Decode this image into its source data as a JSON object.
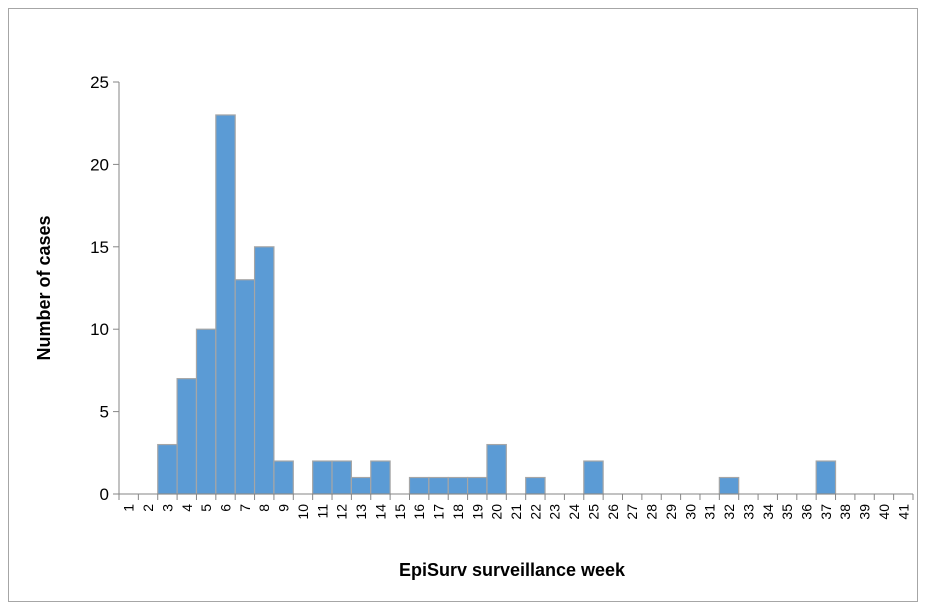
{
  "chart_data": {
    "type": "bar",
    "title": "",
    "xlabel": "EpiSurv surveillance week",
    "ylabel": "Number of cases",
    "ylim": [
      0,
      25
    ],
    "yticks": [
      0,
      5,
      10,
      15,
      20,
      25
    ],
    "grid": false,
    "legend": "none",
    "bar_color": "#5b9bd5",
    "bar_edge_color": "#a6a6a6",
    "categories": [
      "1",
      "2",
      "3",
      "4",
      "5",
      "6",
      "7",
      "8",
      "9",
      "10",
      "11",
      "12",
      "13",
      "14",
      "15",
      "16",
      "17",
      "18",
      "19",
      "20",
      "21",
      "22",
      "23",
      "24",
      "25",
      "26",
      "27",
      "28",
      "29",
      "30",
      "31",
      "32",
      "33",
      "34",
      "35",
      "36",
      "37",
      "38",
      "39",
      "40",
      "41"
    ],
    "values": [
      0,
      0,
      3,
      7,
      10,
      23,
      13,
      15,
      2,
      0,
      2,
      2,
      1,
      2,
      0,
      1,
      1,
      1,
      1,
      3,
      0,
      1,
      0,
      0,
      2,
      0,
      0,
      0,
      0,
      0,
      0,
      1,
      0,
      0,
      0,
      0,
      2,
      0,
      0,
      0,
      0
    ]
  }
}
